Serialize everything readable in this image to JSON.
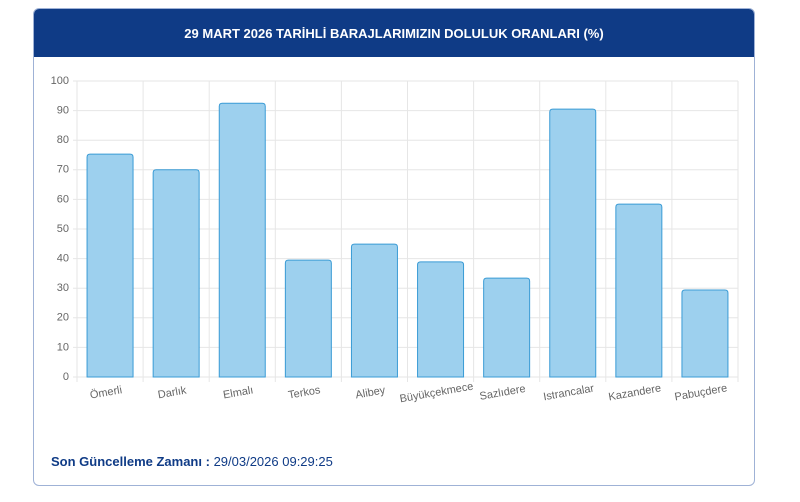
{
  "chart_data": {
    "type": "bar",
    "title": "29 MART 2026 TARİHLİ BARAJLARIMIZIN DOLULUK ORANLARI (%)",
    "categories": [
      "Ömerli",
      "Darlık",
      "Elmalı",
      "Terkos",
      "Alibey",
      "Büyükçekmece",
      "Sazlıdere",
      "Istrancalar",
      "Kazandere",
      "Pabuçdere"
    ],
    "values": [
      75.3,
      70,
      92.5,
      39.5,
      44.9,
      38.9,
      33.4,
      90.5,
      58.4,
      29.4
    ],
    "color": "#9dd0ee",
    "ylim": [
      0,
      100
    ],
    "yticks": [
      0,
      10,
      20,
      30,
      40,
      50,
      60,
      70,
      80,
      90,
      100
    ],
    "grid": true
  },
  "footer": {
    "label": "Son Güncelleme Zamanı :",
    "value": "29/03/2026 09:29:25"
  }
}
